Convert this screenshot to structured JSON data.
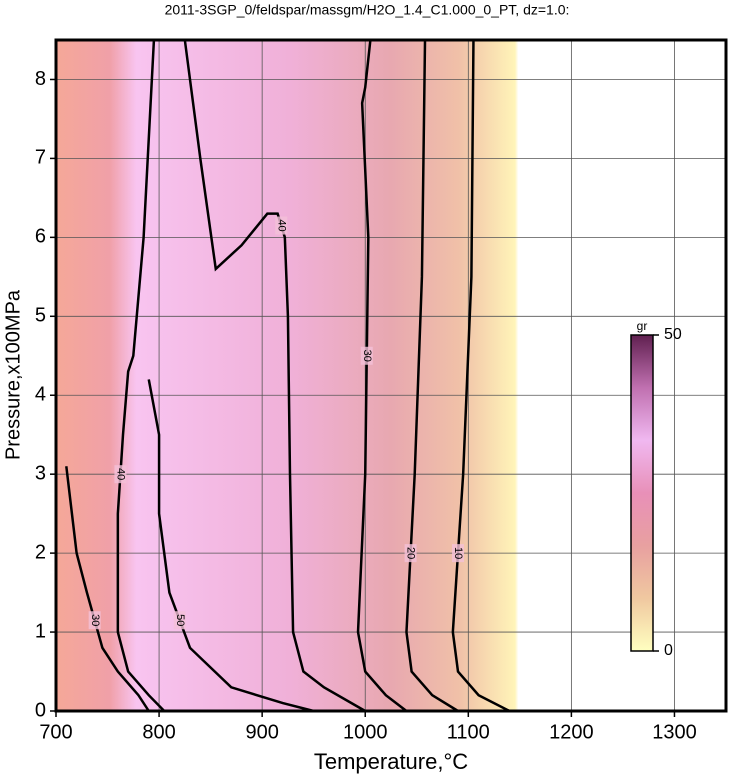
{
  "chart_data": {
    "type": "contour",
    "title": "2011-3SGP_0/feldspar/massgm/H2O_1.4_C1.000_0_PT, dz=1.0:",
    "xlabel": "Temperature,°C",
    "ylabel": "Pressure,x100MPa",
    "xlim": [
      700,
      1350
    ],
    "ylim": [
      0,
      8.5
    ],
    "xticks": [
      700,
      800,
      900,
      1000,
      1100,
      1200,
      1300
    ],
    "yticks": [
      0,
      1,
      2,
      3,
      4,
      5,
      6,
      7,
      8
    ],
    "grid": true,
    "line_color": "#000000",
    "colorbar": {
      "label": "gr",
      "lim": [
        0,
        50
      ],
      "ticks": [
        0,
        50
      ],
      "colors": [
        "#ffffc0",
        "#f0c8a0",
        "#e8a0a0",
        "#e890b8",
        "#f0b8f0",
        "#c070b0",
        "#602050"
      ]
    },
    "contours": [
      {
        "level": 10,
        "x": [
          1105,
          1103,
          1095,
          1085,
          1090,
          1110,
          1140
        ],
        "y": [
          8.5,
          5.5,
          3,
          1,
          0.5,
          0.2,
          0
        ]
      },
      {
        "level": 20,
        "x": [
          1058,
          1055,
          1048,
          1040,
          1045,
          1065,
          1090
        ],
        "y": [
          8.5,
          5.5,
          3,
          1,
          0.5,
          0.2,
          0
        ]
      },
      {
        "level": 30,
        "x": [
          1005,
          1000,
          997,
          1003,
          1000,
          993,
          1000,
          1020,
          1040
        ],
        "y": [
          8.5,
          7.9,
          7.7,
          6,
          3,
          1,
          0.5,
          0.2,
          0
        ]
      },
      {
        "level": 40,
        "x": [
          825,
          840,
          855,
          880,
          905,
          915,
          922,
          925,
          927,
          930,
          940,
          960,
          1000
        ],
        "y": [
          8.5,
          7,
          5.6,
          5.9,
          6.3,
          6.3,
          6,
          5,
          3,
          1,
          0.5,
          0.3,
          0
        ]
      },
      {
        "level": 50,
        "x": [
          790,
          800,
          800,
          810,
          830,
          870,
          920,
          950
        ],
        "y": [
          4.2,
          3.5,
          2.5,
          1.5,
          0.8,
          0.3,
          0.1,
          0
        ]
      },
      {
        "level": 40,
        "x": [
          795,
          785,
          775,
          770,
          765,
          760,
          760,
          770,
          790,
          805
        ],
        "y": [
          8.5,
          6,
          4.5,
          4.3,
          3.5,
          2.5,
          1,
          0.5,
          0.2,
          0
        ]
      },
      {
        "level": 30,
        "x": [
          710,
          720,
          730,
          745,
          760,
          780,
          790
        ],
        "y": [
          3.1,
          2,
          1.5,
          0.8,
          0.5,
          0.2,
          0
        ]
      }
    ]
  }
}
